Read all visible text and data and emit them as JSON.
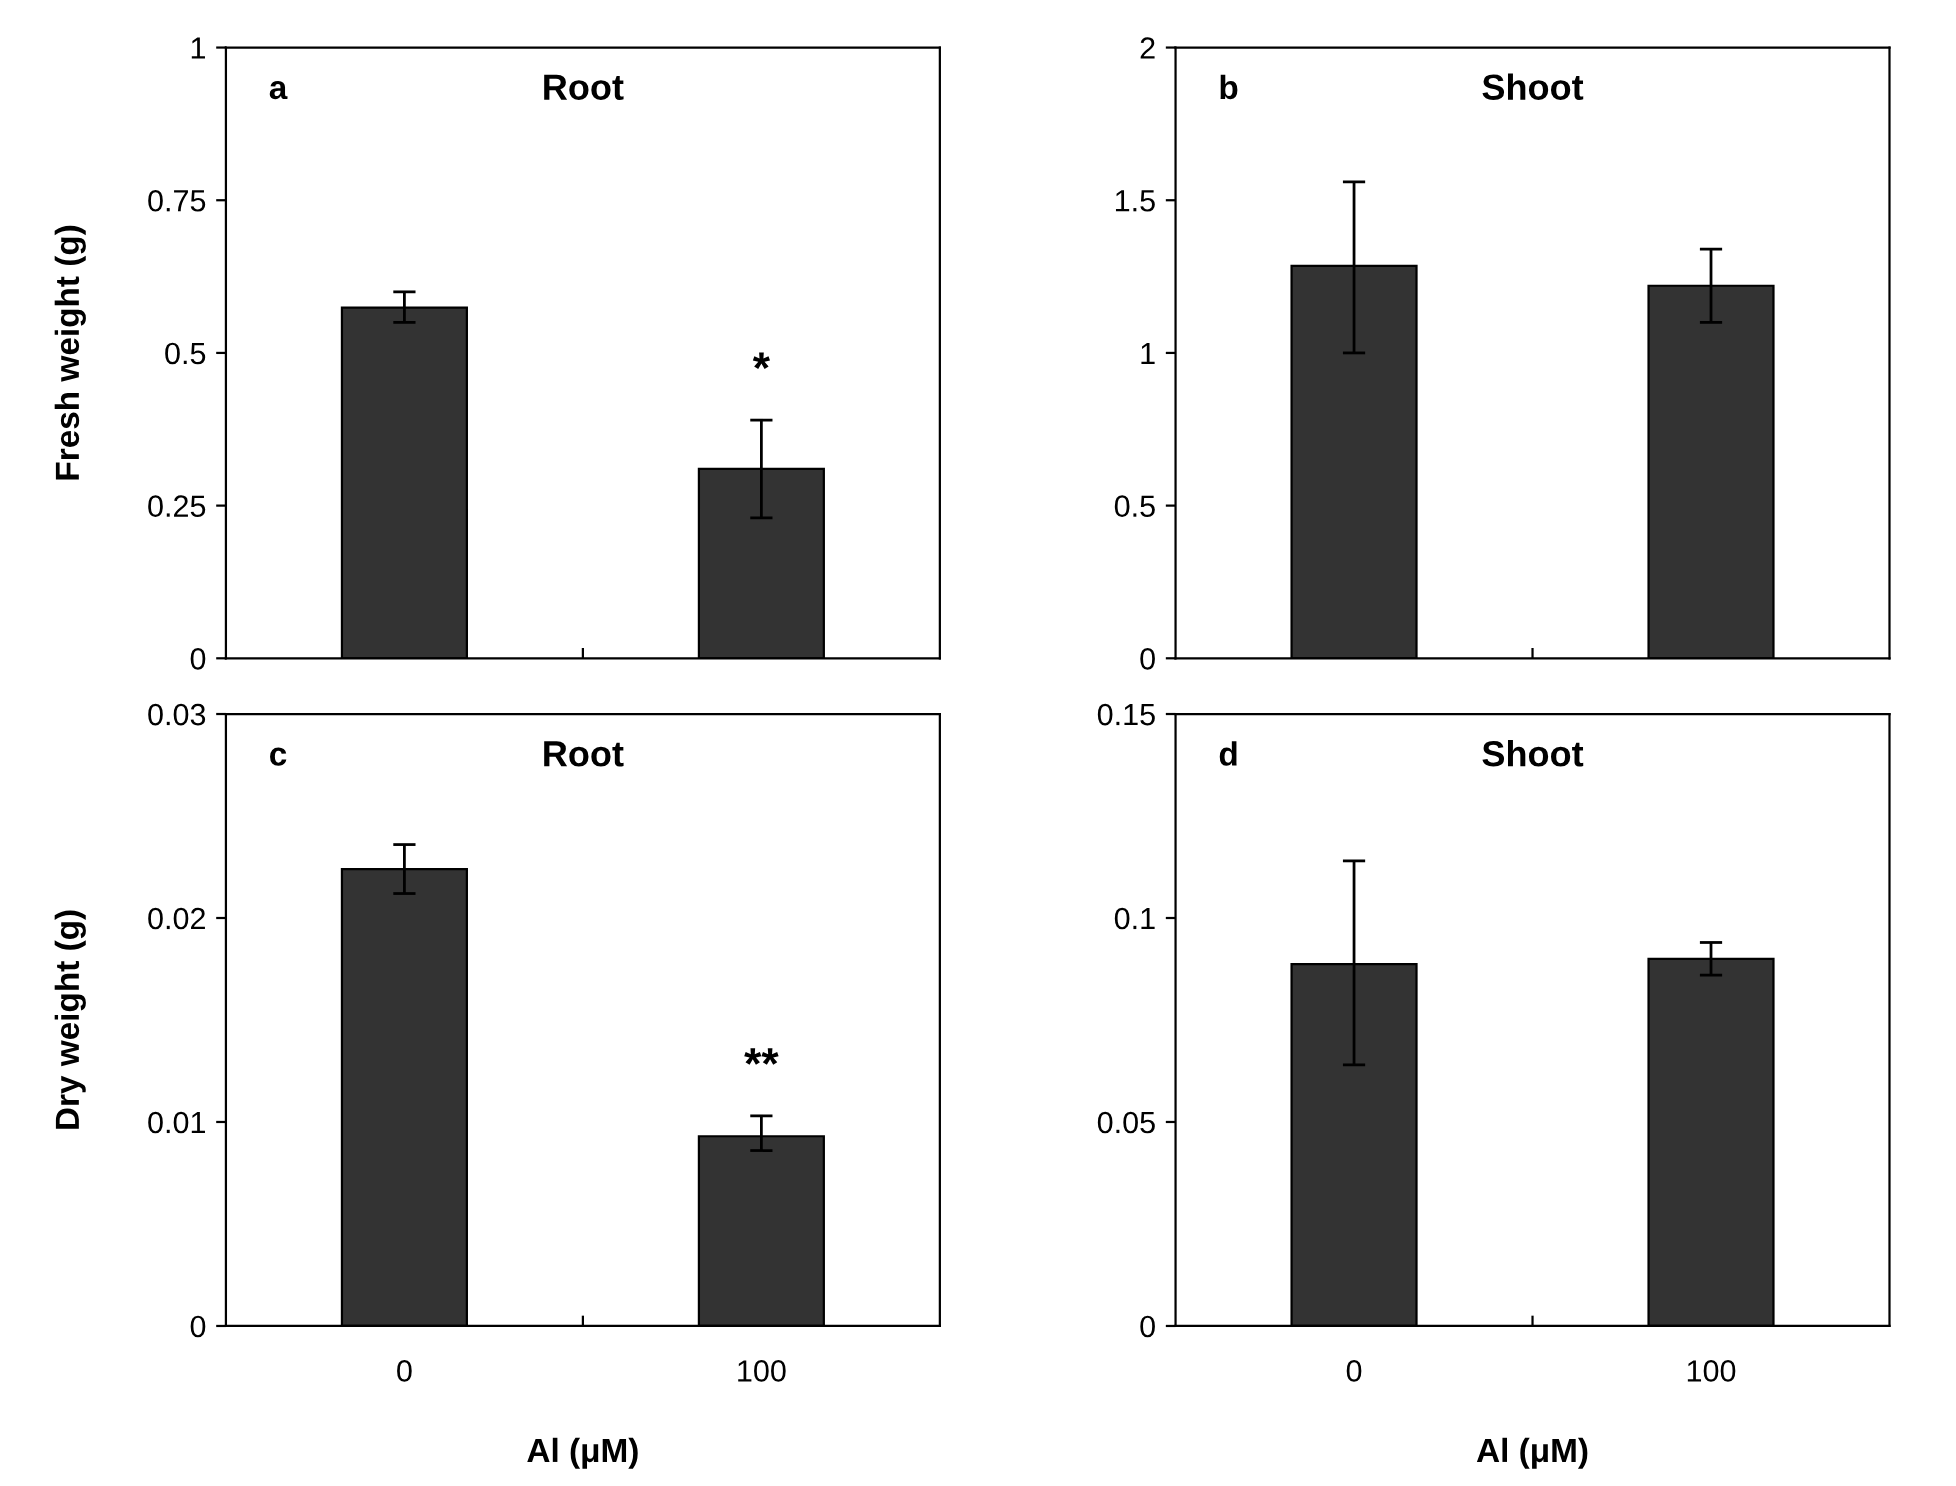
{
  "chart_data": [
    {
      "type": "bar",
      "title": "Root",
      "ylabel": "Fresh weight (g)",
      "categories": [
        "0",
        "100"
      ],
      "values": [
        0.574,
        0.31
      ],
      "errors": [
        [
          0.55,
          0.6
        ],
        [
          0.23,
          0.39
        ]
      ],
      "color": "#333333",
      "ylim": [
        0,
        1
      ],
      "yticks": [
        0,
        0.25,
        0.5,
        0.75,
        1
      ],
      "tick_labels": "y",
      "annotations": [
        "a",
        {
          "text": "*",
          "x": "100",
          "y": 0.39
        }
      ]
    },
    {
      "type": "bar",
      "title": "Shoot",
      "categories": [
        "0",
        "100"
      ],
      "values": [
        1.285,
        1.22
      ],
      "errors": [
        [
          1.0,
          1.56
        ],
        [
          1.1,
          1.34
        ]
      ],
      "color": "#333333",
      "ylim": [
        0,
        2
      ],
      "yticks": [
        0,
        0.5,
        1,
        1.5,
        2
      ],
      "tick_labels": "y",
      "annotations": [
        "b"
      ]
    },
    {
      "type": "bar",
      "title": "Root",
      "ylabel": "Dry weight (g)",
      "xlabel": "Al (μM)",
      "categories": [
        "0",
        "100"
      ],
      "values": [
        0.0224,
        0.0093
      ],
      "errors": [
        [
          0.0212,
          0.0236
        ],
        [
          0.0086,
          0.0103
        ]
      ],
      "color": "#333333",
      "ylim": [
        0,
        0.03
      ],
      "yticks": [
        0,
        0.01,
        0.02,
        0.03
      ],
      "annotations": [
        "c",
        {
          "text": "**",
          "x": "100",
          "y": 0.0103
        }
      ]
    },
    {
      "type": "bar",
      "title": "Shoot",
      "xlabel": "Al (μM)",
      "categories": [
        "0",
        "100"
      ],
      "values": [
        0.0887,
        0.09
      ],
      "errors": [
        [
          0.064,
          0.114
        ],
        [
          0.086,
          0.094
        ]
      ],
      "color": "#333333",
      "ylim": [
        0,
        0.15
      ],
      "yticks": [
        0,
        0.05,
        0.1,
        0.15
      ],
      "annotations": [
        "d"
      ]
    }
  ]
}
